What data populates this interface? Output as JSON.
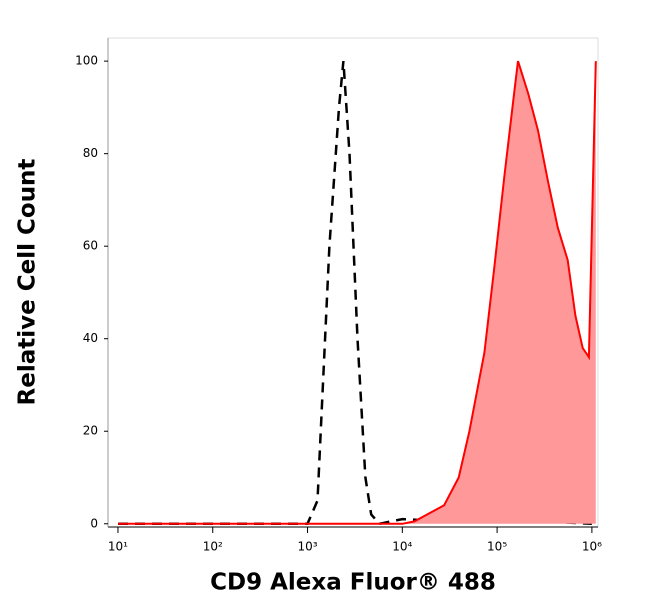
{
  "chart_data": {
    "type": "line",
    "x_label": "CD9 Alexa Fluor® 488",
    "y_label": "Relative Cell Count",
    "xscale": "log",
    "xlim": [
      7.85,
      1160000
    ],
    "ylim": [
      -0.7,
      105
    ],
    "xticks": [
      {
        "value": 10,
        "label": "10¹"
      },
      {
        "value": 100,
        "label": "10²"
      },
      {
        "value": 1000,
        "label": "10³"
      },
      {
        "value": 10000,
        "label": "10⁴"
      },
      {
        "value": 100000,
        "label": "10⁵"
      },
      {
        "value": 1000000,
        "label": "10⁶"
      }
    ],
    "yticks": [
      0,
      20,
      40,
      60,
      80,
      100
    ],
    "series": [
      {
        "color": "#000000",
        "dashed": true,
        "fill": false,
        "x": [
          10,
          1000,
          1275,
          1700,
          2150,
          2390,
          2770,
          3370,
          4080,
          4700,
          5730,
          10000,
          30000,
          100000,
          300000,
          1000000
        ],
        "values": [
          0,
          0,
          5,
          60,
          90,
          100,
          80,
          40,
          10,
          2,
          0,
          1,
          0.5,
          0.5,
          0.5,
          0
        ]
      },
      {
        "color": "#ff0000",
        "dashed": false,
        "fill": true,
        "fill_color": "#ff9999",
        "x": [
          10,
          10000,
          13400,
          27600,
          39300,
          51000,
          73500,
          93000,
          119000,
          151000,
          166000,
          213000,
          270000,
          344000,
          437000,
          555000,
          670000,
          800000,
          930000,
          1100000
        ],
        "values": [
          0,
          0,
          0.5,
          4,
          10,
          20,
          37,
          55,
          75,
          93,
          100,
          93,
          85,
          74,
          64,
          57,
          45,
          38,
          36,
          100
        ]
      }
    ]
  }
}
